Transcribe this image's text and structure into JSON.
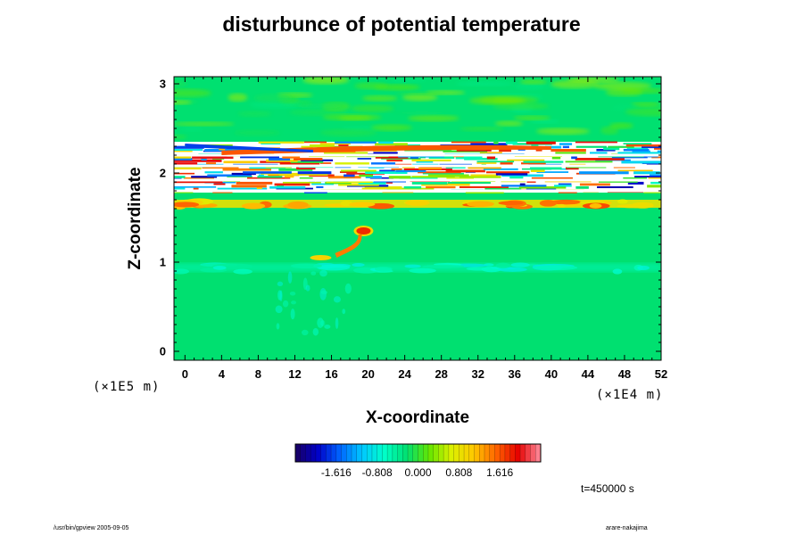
{
  "chart_data": {
    "type": "heatmap",
    "title": "disturbunce of potential temperature",
    "xlabel": "X-coordinate",
    "ylabel": "Z-coordinate",
    "x_ticks": [
      "0",
      "4",
      "8",
      "12",
      "16",
      "20",
      "24",
      "28",
      "32",
      "36",
      "40",
      "44",
      "48",
      "52"
    ],
    "y_ticks": [
      "0",
      "1",
      "2",
      "3"
    ],
    "x_scale_label": "(×1E4 m)",
    "y_scale_label": "(×1E5 m)",
    "xlim": [
      -1.2,
      52
    ],
    "ylim": [
      -0.1,
      3.08
    ],
    "colorbar": {
      "tick_labels": [
        "-1.616",
        "-0.808",
        "0.000",
        "0.808",
        "1.616"
      ],
      "tick_values": [
        -1.616,
        -0.808,
        0.0,
        0.808,
        1.616
      ],
      "range": [
        -2.424,
        2.424
      ]
    },
    "annotations": {
      "time": "t=450000 s"
    },
    "features": [
      {
        "kind": "warm_layer",
        "z": 1.65,
        "value": 1.4
      },
      {
        "kind": "noisy_band",
        "z_range": [
          1.78,
          2.35
        ]
      },
      {
        "kind": "warm_streak",
        "z": 2.28,
        "value": 1.6
      },
      {
        "kind": "cool_layer",
        "z": 0.95,
        "value": -0.8
      },
      {
        "kind": "warm_plume",
        "x": 19.5,
        "z": 1.35,
        "value": 1.8
      }
    ]
  },
  "footer": {
    "left": "/usr/bin/gpview 2005-09-05",
    "right": "arare-nakajima"
  },
  "colors": {
    "background": "#00e070",
    "palette": [
      "#1a0060",
      "#0000c8",
      "#0064ff",
      "#00c8ff",
      "#00ffc8",
      "#00e070",
      "#64e600",
      "#dcf000",
      "#ffc800",
      "#ff6400",
      "#e60000",
      "#ff90a0"
    ]
  }
}
